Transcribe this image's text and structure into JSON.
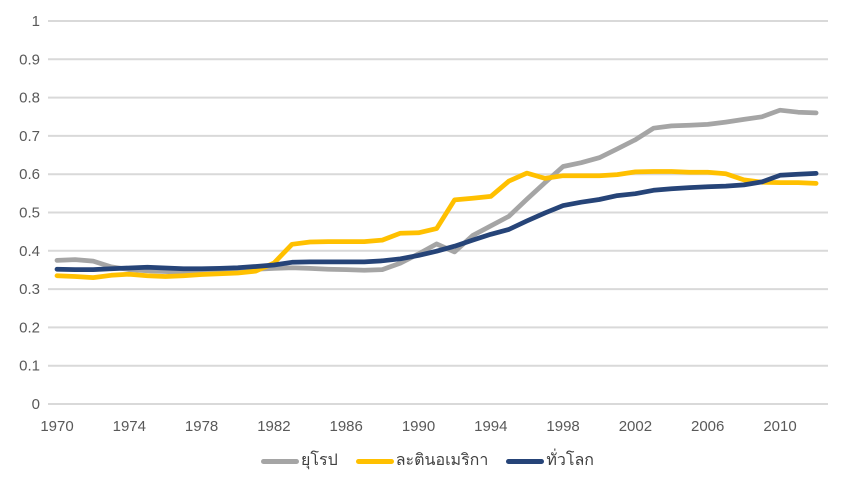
{
  "chart_data": {
    "type": "line",
    "title": "",
    "xlabel": "",
    "ylabel": "",
    "grid": true,
    "x_years": [
      1970,
      1971,
      1972,
      1973,
      1974,
      1975,
      1976,
      1977,
      1978,
      1979,
      1980,
      1981,
      1982,
      1983,
      1984,
      1985,
      1986,
      1987,
      1988,
      1989,
      1990,
      1991,
      1992,
      1993,
      1994,
      1995,
      1996,
      1997,
      1998,
      1999,
      2000,
      2001,
      2002,
      2003,
      2004,
      2005,
      2006,
      2007,
      2008,
      2009,
      2010,
      2011,
      2012
    ],
    "series": [
      {
        "id": "europe",
        "name": "ยุโรป",
        "color": "#A5A5A5",
        "values": [
          0.375,
          0.377,
          0.373,
          0.358,
          0.351,
          0.348,
          0.346,
          0.344,
          0.346,
          0.348,
          0.35,
          0.352,
          0.354,
          0.356,
          0.354,
          0.352,
          0.351,
          0.349,
          0.351,
          0.368,
          0.392,
          0.418,
          0.397,
          0.44,
          0.465,
          0.49,
          0.535,
          0.578,
          0.62,
          0.63,
          0.643,
          0.666,
          0.69,
          0.72,
          0.726,
          0.728,
          0.73,
          0.736,
          0.743,
          0.75,
          0.767,
          0.762,
          0.76
        ]
      },
      {
        "id": "latin-america",
        "name": "ละตินอเมริกา",
        "color": "#FFC000",
        "values": [
          0.335,
          0.333,
          0.33,
          0.336,
          0.339,
          0.335,
          0.333,
          0.335,
          0.338,
          0.34,
          0.342,
          0.347,
          0.368,
          0.417,
          0.423,
          0.424,
          0.424,
          0.424,
          0.428,
          0.446,
          0.447,
          0.458,
          0.533,
          0.537,
          0.542,
          0.582,
          0.603,
          0.589,
          0.596,
          0.596,
          0.596,
          0.599,
          0.606,
          0.607,
          0.607,
          0.605,
          0.605,
          0.601,
          0.585,
          0.579,
          0.578,
          0.578,
          0.576
        ]
      },
      {
        "id": "global",
        "name": "ทั่วโลก",
        "color": "#264478",
        "values": [
          0.352,
          0.351,
          0.351,
          0.353,
          0.355,
          0.357,
          0.355,
          0.353,
          0.353,
          0.354,
          0.356,
          0.359,
          0.363,
          0.37,
          0.371,
          0.371,
          0.371,
          0.371,
          0.374,
          0.379,
          0.388,
          0.399,
          0.412,
          0.428,
          0.443,
          0.456,
          0.478,
          0.499,
          0.518,
          0.527,
          0.534,
          0.544,
          0.549,
          0.558,
          0.562,
          0.565,
          0.567,
          0.569,
          0.572,
          0.58,
          0.597,
          0.6,
          0.602
        ]
      }
    ],
    "y_axis": {
      "min": 0,
      "max": 1,
      "step": 0.1,
      "tick_labels": [
        "1",
        "0.9",
        "0.8",
        "0.7",
        "0.6",
        "0.5",
        "0.4",
        "0.3",
        "0.2",
        "0.1",
        "0"
      ]
    },
    "x_axis": {
      "tick_years": [
        1970,
        1974,
        1978,
        1982,
        1986,
        1990,
        1994,
        1998,
        2002,
        2006,
        2010
      ]
    },
    "legend_position": "bottom"
  },
  "legend": {
    "europe": "ยุโรป",
    "latin_america": "ละตินอเมริกา",
    "global": "ทั่วโลก"
  },
  "colors": {
    "europe": "#A5A5A5",
    "latin_america": "#FFC000",
    "global": "#264478",
    "gridline": "#D9D9D9",
    "axis_text": "#595959",
    "background": "#FFFFFF"
  }
}
